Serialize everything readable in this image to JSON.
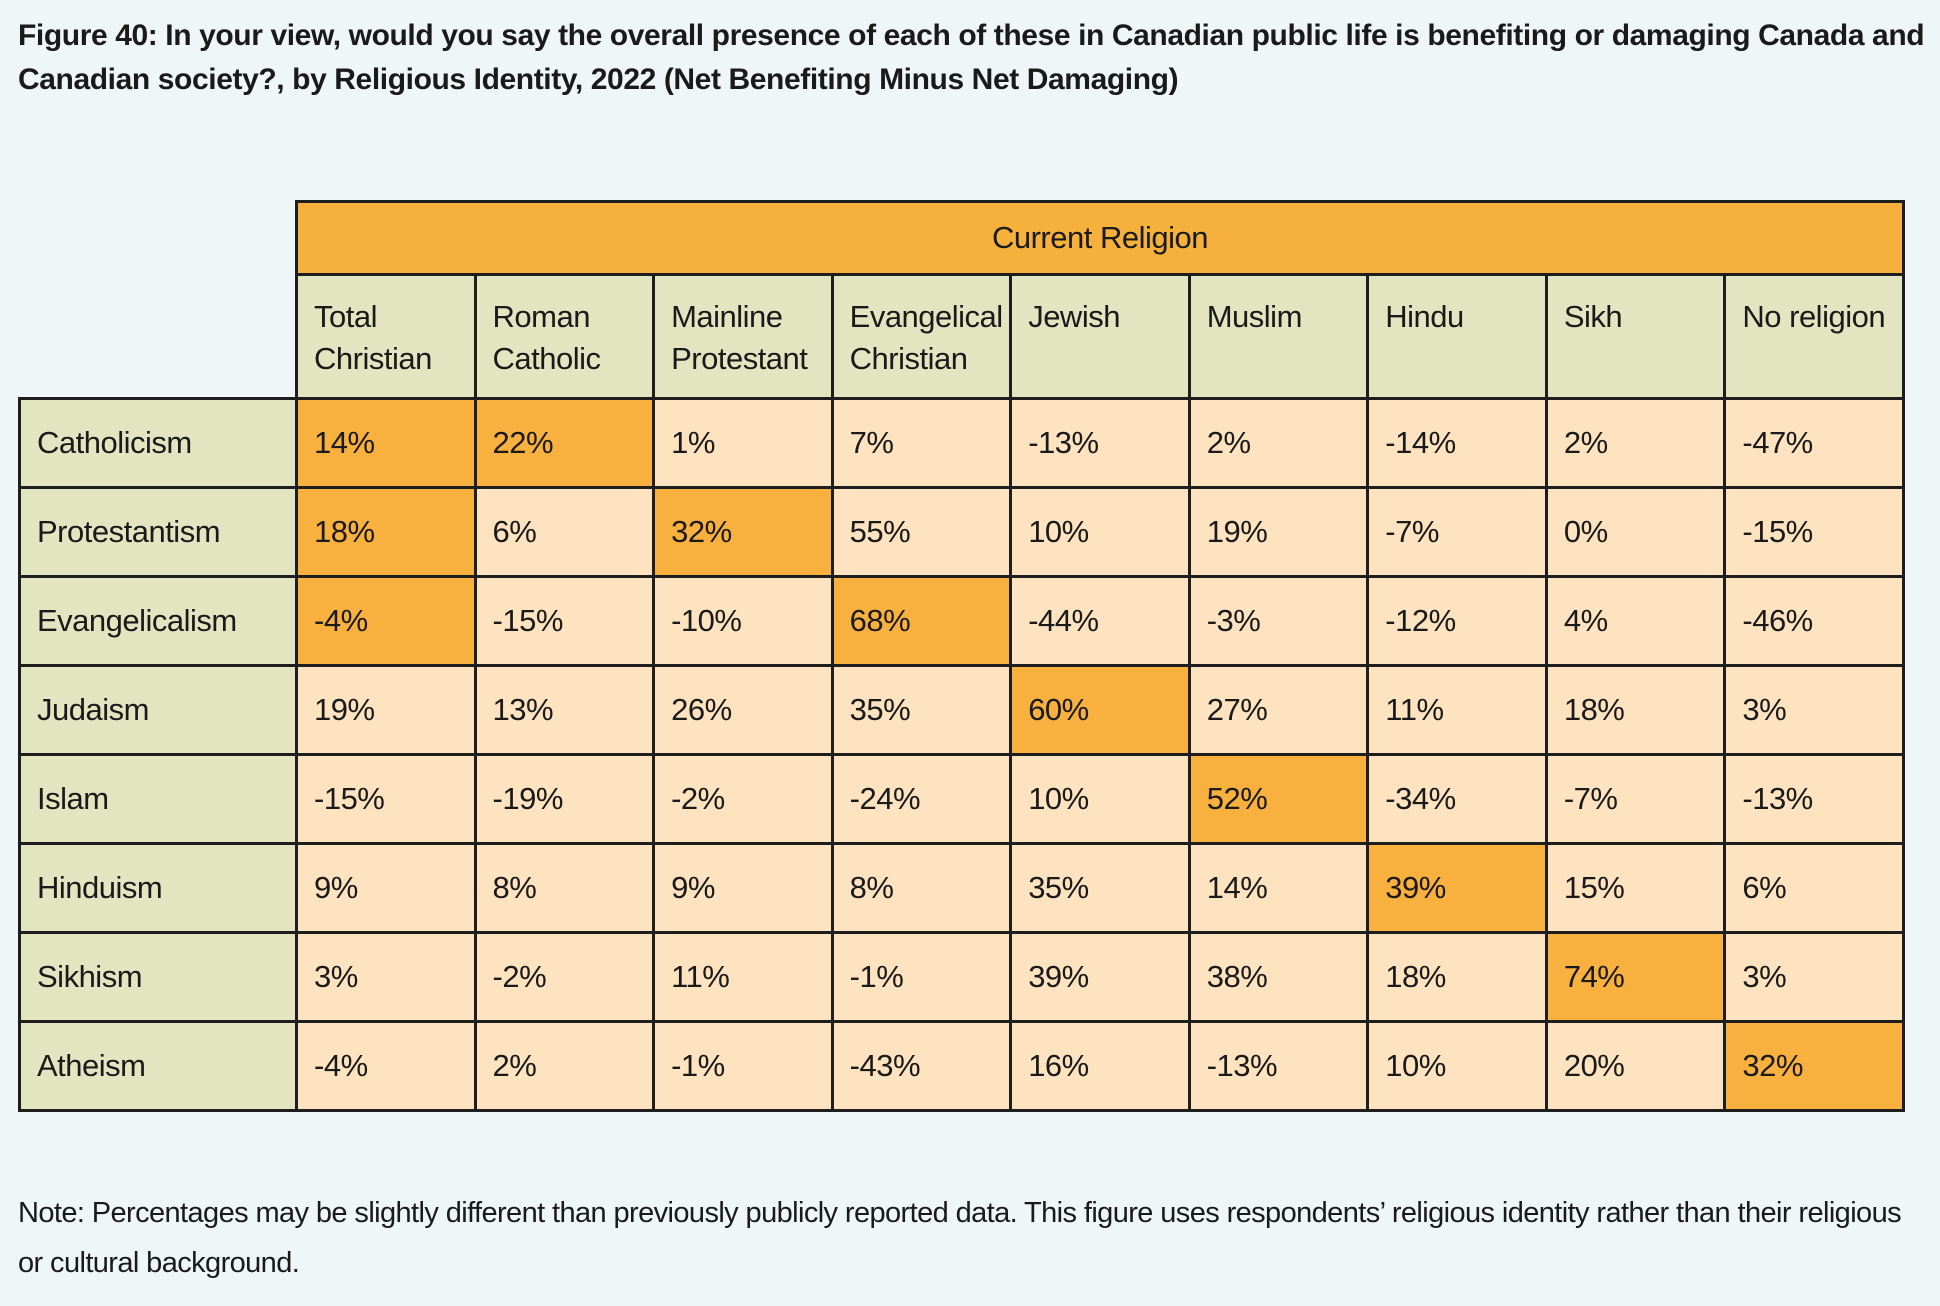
{
  "title": "Figure 40: In your view, would you say the overall presence of each of these in Canadian public life is benefiting or damaging Canada and Canadian society?, by Religious Identity, 2022 (Net Benefiting Minus Net Damaging)",
  "table": {
    "group_header": "Current Religion",
    "columns": [
      "Total Christian",
      "Roman Catholic",
      "Mainline Protestant",
      "Evangelical Christian",
      "Jewish",
      "Muslim",
      "Hindu",
      "Sikh",
      "No religion"
    ],
    "rows": [
      {
        "label": "Catholicism",
        "cells": [
          "14%",
          "22%",
          "1%",
          "7%",
          "-13%",
          "2%",
          "-14%",
          "2%",
          "-47%"
        ],
        "highlight": [
          0,
          1
        ]
      },
      {
        "label": "Protestantism",
        "cells": [
          "18%",
          "6%",
          "32%",
          "55%",
          "10%",
          "19%",
          "-7%",
          "0%",
          "-15%"
        ],
        "highlight": [
          0,
          2
        ]
      },
      {
        "label": "Evangelicalism",
        "cells": [
          "-4%",
          "-15%",
          "-10%",
          "68%",
          "-44%",
          "-3%",
          "-12%",
          "4%",
          "-46%"
        ],
        "highlight": [
          0,
          3
        ]
      },
      {
        "label": "Judaism",
        "cells": [
          "19%",
          "13%",
          "26%",
          "35%",
          "60%",
          "27%",
          "11%",
          "18%",
          "3%"
        ],
        "highlight": [
          4
        ]
      },
      {
        "label": "Islam",
        "cells": [
          "-15%",
          "-19%",
          "-2%",
          "-24%",
          "10%",
          "52%",
          "-34%",
          "-7%",
          "-13%"
        ],
        "highlight": [
          5
        ]
      },
      {
        "label": "Hinduism",
        "cells": [
          "9%",
          "8%",
          "9%",
          "8%",
          "35%",
          "14%",
          "39%",
          "15%",
          "6%"
        ],
        "highlight": [
          6
        ]
      },
      {
        "label": "Sikhism",
        "cells": [
          "3%",
          "-2%",
          "11%",
          "-1%",
          "39%",
          "38%",
          "18%",
          "74%",
          "3%"
        ],
        "highlight": [
          7
        ]
      },
      {
        "label": "Atheism",
        "cells": [
          "-4%",
          "2%",
          "-1%",
          "-43%",
          "16%",
          "-13%",
          "10%",
          "20%",
          "32%"
        ],
        "highlight": [
          8
        ]
      }
    ]
  },
  "note": "Note: Percentages may be slightly different than previously publicly reported data. This figure uses respondents’ religious identity rather than their religious or cultural background."
}
